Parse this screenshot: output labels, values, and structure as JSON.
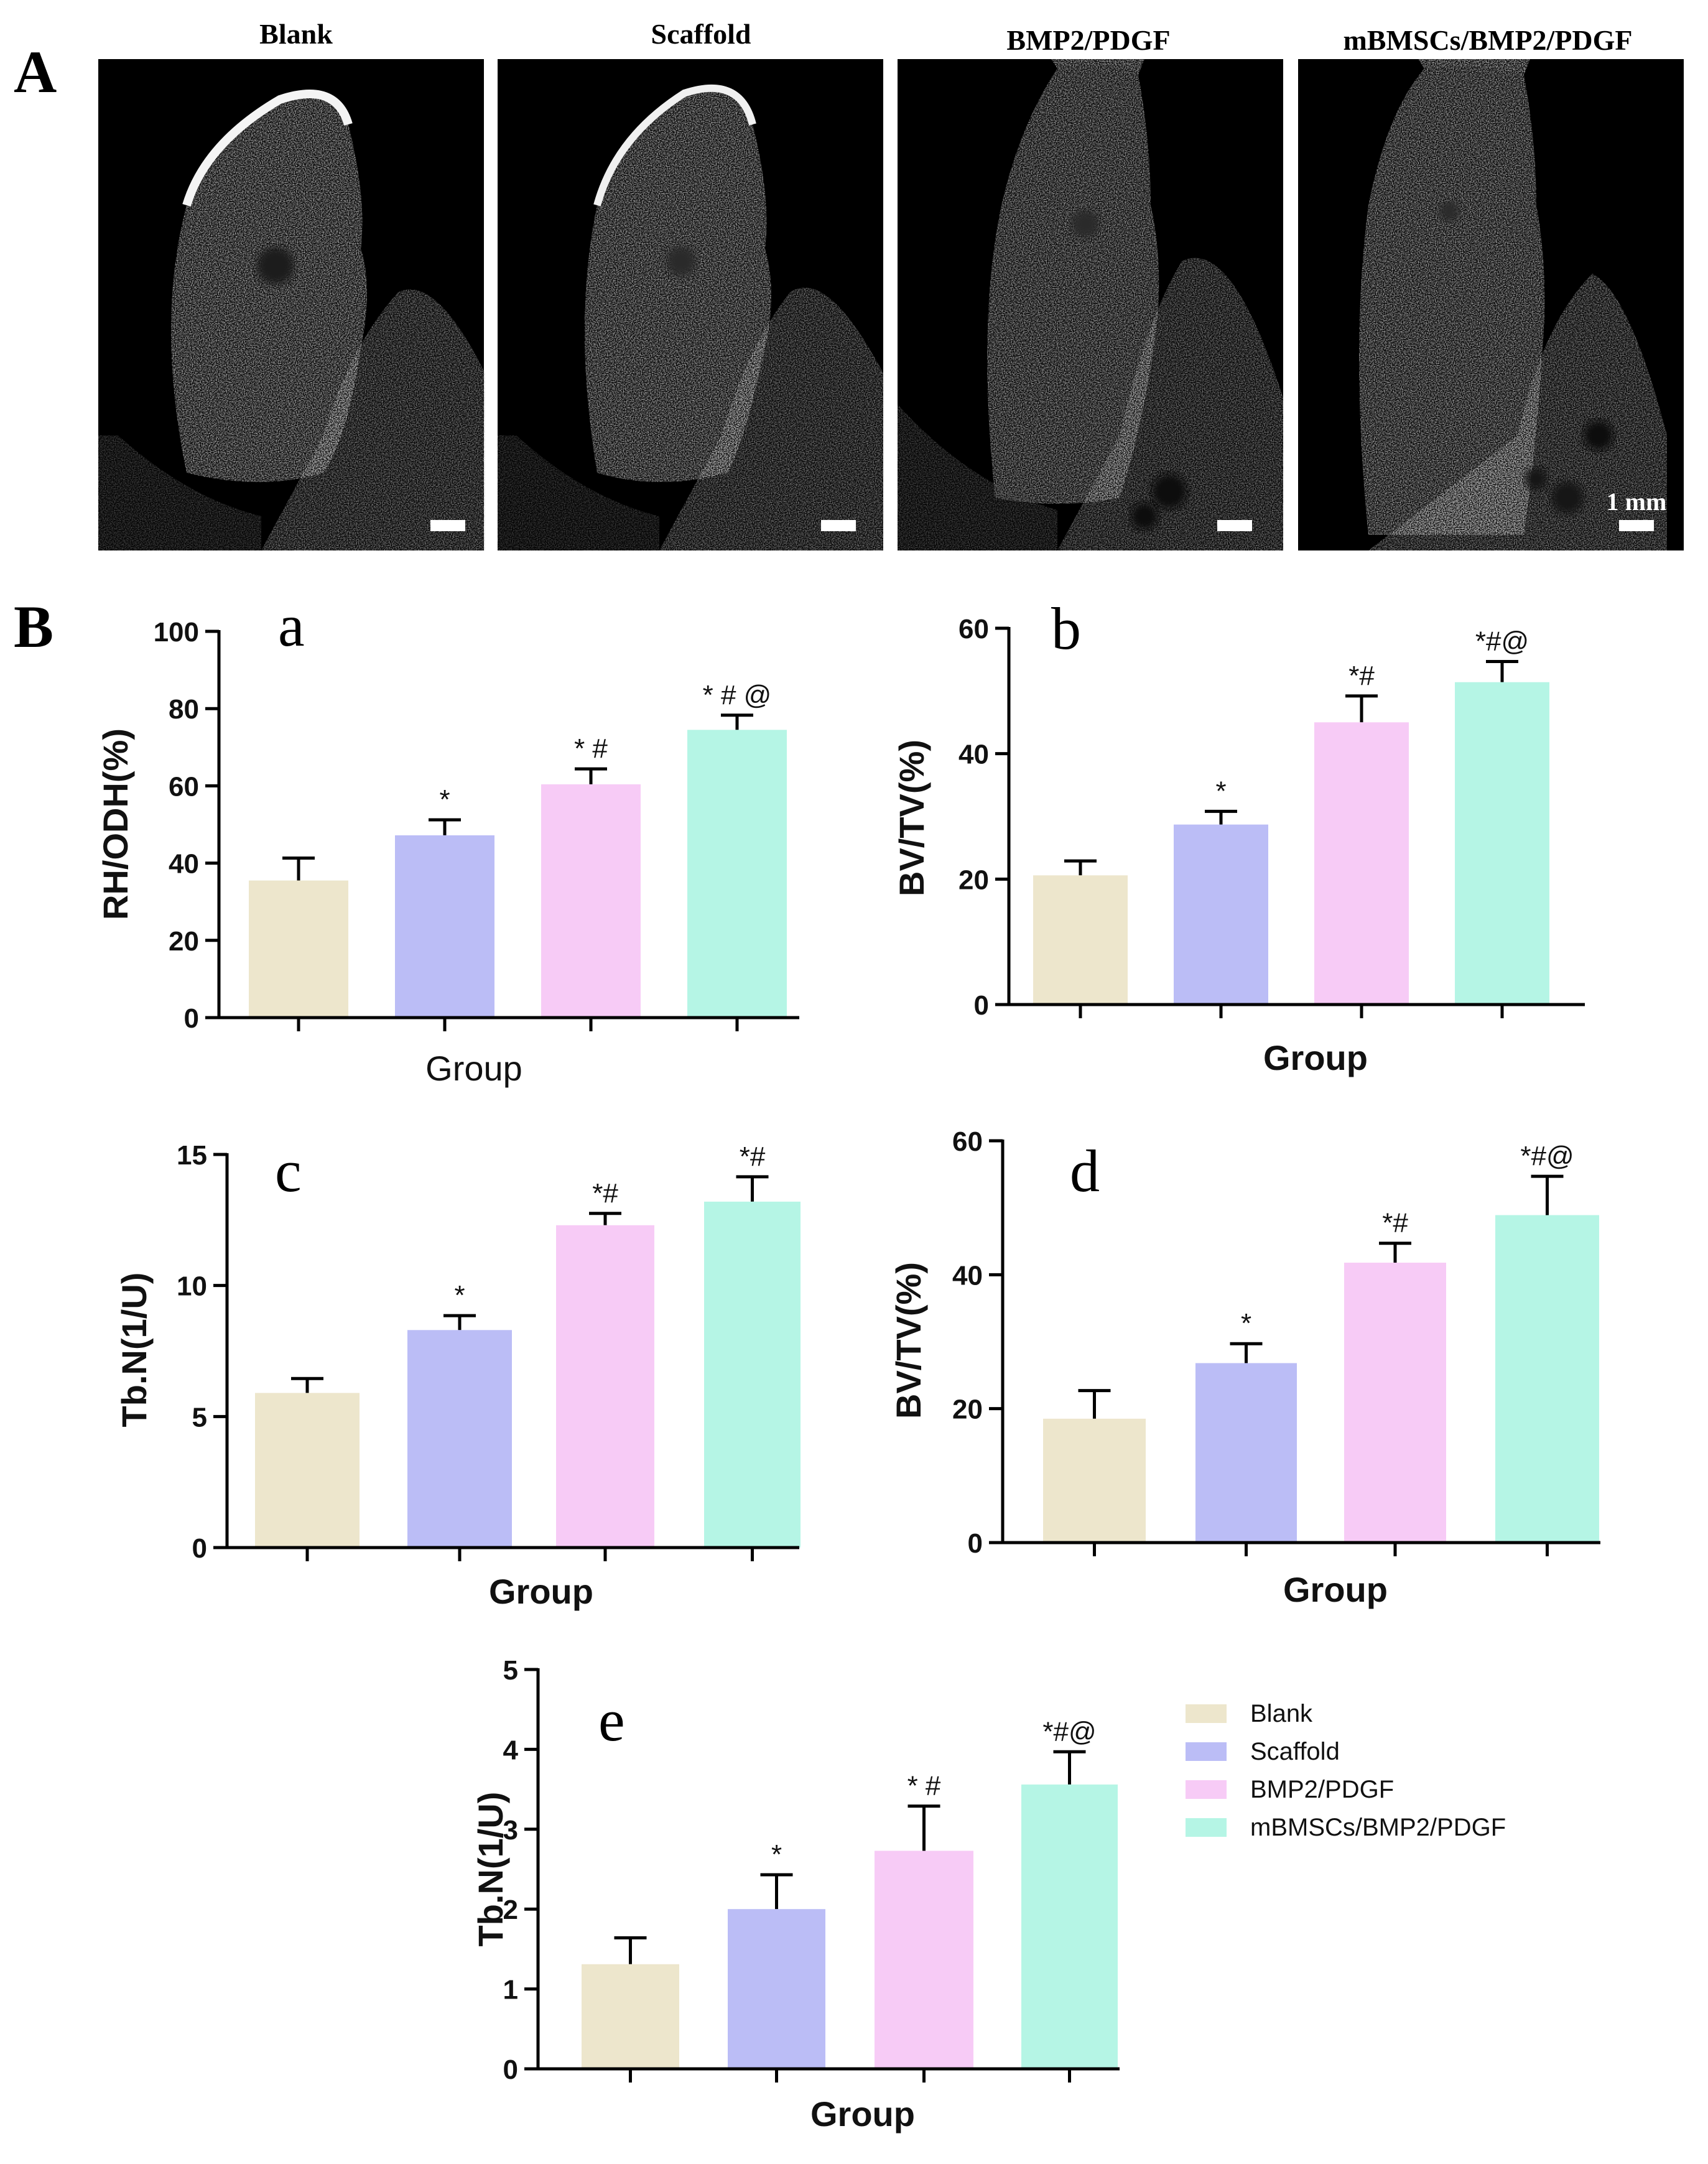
{
  "panel_labels": {
    "A": "A",
    "B": "B"
  },
  "micrographs": [
    {
      "title": "Blank",
      "scale_label": ""
    },
    {
      "title": "Scaffold",
      "scale_label": ""
    },
    {
      "title": "BMP2/PDGF",
      "scale_label": ""
    },
    {
      "title": "mBMSCs/BMP2/PDGF",
      "scale_label": "1 mm"
    }
  ],
  "colors": {
    "Blank": "#ede6cc",
    "Scaffold": "#bbbdf6",
    "BMP2/PDGF": "#f7cbf6",
    "mBMSCs/BMP2/PDGF": "#b5f5e5",
    "axis": "#000000"
  },
  "legend": {
    "position": "right of panel e",
    "items": [
      "Blank",
      "Scaffold",
      "BMP2/PDGF",
      "mBMSCs/BMP2/PDGF"
    ]
  },
  "chart_data": [
    {
      "id": "a",
      "type": "bar",
      "panel_letter": "a",
      "categories": [
        "Blank",
        "Scaffold",
        "BMP2/PDGF",
        "mBMSCs/BMP2/PDGF"
      ],
      "values": [
        35.5,
        47.2,
        60.4,
        74.5
      ],
      "errors": [
        5.8,
        4.0,
        4.0,
        3.8
      ],
      "significance": [
        "",
        "*",
        "* #",
        "* # @"
      ],
      "ylabel": "RH/ODH(%)",
      "xlabel": "Group",
      "ylim": [
        0,
        100
      ],
      "yticks": [
        "0",
        "20",
        "40",
        "60",
        "80",
        "100"
      ],
      "ytick_values": [
        0,
        20,
        40,
        60,
        80,
        100
      ]
    },
    {
      "id": "b",
      "type": "bar",
      "panel_letter": "b",
      "categories": [
        "Blank",
        "Scaffold",
        "BMP2/PDGF",
        "mBMSCs/BMP2/PDGF"
      ],
      "values": [
        20.6,
        28.7,
        45.0,
        51.4
      ],
      "errors": [
        2.3,
        2.1,
        4.2,
        3.3
      ],
      "significance": [
        "",
        "*",
        "*#",
        "*#@"
      ],
      "ylabel": "BV/TV(%)",
      "xlabel": "Group",
      "ylim": [
        0,
        60
      ],
      "yticks": [
        "0",
        "20",
        "40",
        "60"
      ],
      "ytick_values": [
        0,
        20,
        40,
        60
      ]
    },
    {
      "id": "c",
      "type": "bar",
      "panel_letter": "c",
      "categories": [
        "Blank",
        "Scaffold",
        "BMP2/PDGF",
        "mBMSCs/BMP2/PDGF"
      ],
      "values": [
        5.9,
        8.3,
        12.3,
        13.2
      ],
      "errors": [
        0.55,
        0.55,
        0.45,
        0.95
      ],
      "significance": [
        "",
        "*",
        "*#",
        "*#"
      ],
      "ylabel": "Tb.N(1/U)",
      "xlabel": "Group",
      "ylim": [
        0,
        15
      ],
      "yticks": [
        "0",
        "5",
        "10",
        "15"
      ],
      "ytick_values": [
        0,
        5,
        10,
        15
      ]
    },
    {
      "id": "d",
      "type": "bar",
      "panel_letter": "d",
      "categories": [
        "Blank",
        "Scaffold",
        "BMP2/PDGF",
        "mBMSCs/BMP2/PDGF"
      ],
      "values": [
        18.5,
        26.8,
        41.8,
        48.9
      ],
      "errors": [
        4.2,
        2.9,
        2.9,
        5.8
      ],
      "significance": [
        "",
        "*",
        "*#",
        "*#@"
      ],
      "ylabel": "BV/TV(%)",
      "xlabel": "Group",
      "ylim": [
        0,
        60
      ],
      "yticks": [
        "0",
        "20",
        "40",
        "60"
      ],
      "ytick_values": [
        0,
        20,
        40,
        60
      ]
    },
    {
      "id": "e",
      "type": "bar",
      "panel_letter": "e",
      "categories": [
        "Blank",
        "Scaffold",
        "BMP2/PDGF",
        "mBMSCs/BMP2/PDGF"
      ],
      "values": [
        1.31,
        2.0,
        2.73,
        3.56
      ],
      "errors": [
        0.33,
        0.43,
        0.56,
        0.41
      ],
      "significance": [
        "",
        "*",
        "* #",
        "*#@"
      ],
      "ylabel": "Tb.N(1/U)",
      "xlabel": "Group",
      "ylim": [
        0,
        5
      ],
      "yticks": [
        "0",
        "1",
        "2",
        "3",
        "4",
        "5"
      ],
      "ytick_values": [
        0,
        1,
        2,
        3,
        4,
        5
      ]
    }
  ]
}
